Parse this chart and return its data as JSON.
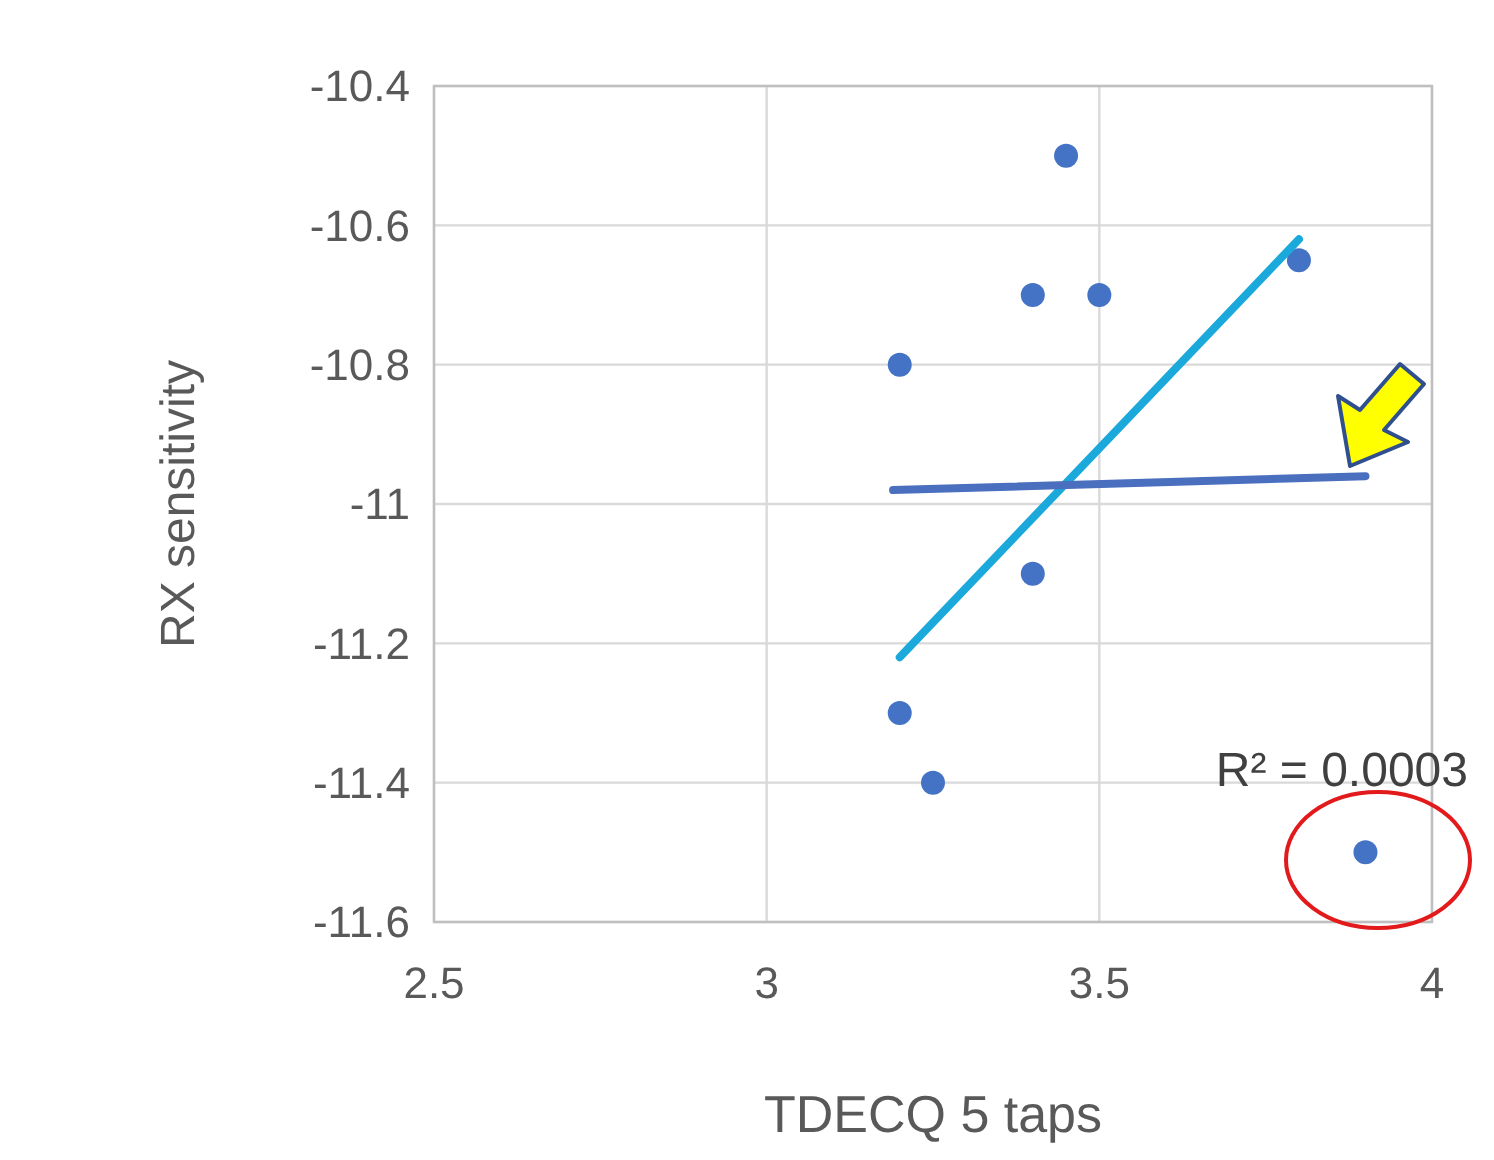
{
  "chart_data": {
    "type": "scatter",
    "xlabel": "TDECQ 5 taps",
    "ylabel": "RX sensitivity",
    "xlim": [
      2.5,
      4
    ],
    "xticks": [
      2.5,
      3,
      3.5,
      4
    ],
    "ylim": [
      -11.6,
      -10.4
    ],
    "yticks": [
      -11.6,
      -11.4,
      -11.2,
      -11,
      -10.8,
      -10.6,
      -10.4
    ],
    "grid": true,
    "series": [
      {
        "marker": "circle",
        "color": "#4472c4",
        "x": [
          3.45,
          3.4,
          3.5,
          3.8,
          3.2,
          3.4,
          3.2,
          3.25,
          3.9
        ],
        "values": [
          -10.5,
          -10.7,
          -10.7,
          -10.65,
          -10.8,
          -11.1,
          -11.3,
          -11.4,
          -11.5
        ]
      },
      {
        "type": "line",
        "color": "#1ba9dc",
        "x": [
          3.2,
          3.8
        ],
        "values": [
          -11.22,
          -10.62
        ]
      },
      {
        "type": "line",
        "color": "#4a6fbf",
        "x": [
          3.19,
          3.9
        ],
        "values": [
          -10.98,
          -10.96
        ]
      }
    ],
    "annotations": [
      "R² = 0.0003"
    ]
  }
}
